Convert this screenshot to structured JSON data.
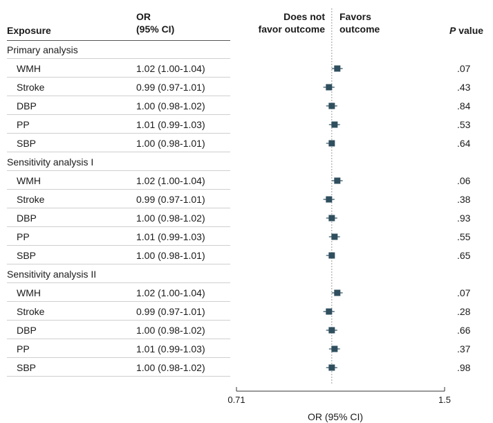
{
  "header": {
    "exposure": "Exposure",
    "or_line1": "OR",
    "or_line2": "(95% CI)",
    "left_line1": "Does not",
    "left_line2": "favor outcome",
    "right_line1": "Favors",
    "right_line2": "outcome",
    "p_italic": "P",
    "p_rest": " value"
  },
  "chart_data": {
    "type": "forest",
    "xlabel": "OR (95% CI)",
    "xscale": "log",
    "xlim": [
      0.71,
      1.5
    ],
    "xticks": [
      "0.71",
      "1.5"
    ],
    "reference_line": 1.0,
    "groups": [
      {
        "name": "Primary analysis",
        "rows": [
          {
            "label": "WMH",
            "or_text": "1.02 (1.00-1.04)",
            "or": 1.02,
            "lo": 1.0,
            "hi": 1.04,
            "p": ".07"
          },
          {
            "label": "Stroke",
            "or_text": "0.99 (0.97-1.01)",
            "or": 0.99,
            "lo": 0.97,
            "hi": 1.01,
            "p": ".43"
          },
          {
            "label": "DBP",
            "or_text": "1.00 (0.98-1.02)",
            "or": 1.0,
            "lo": 0.98,
            "hi": 1.02,
            "p": ".84"
          },
          {
            "label": "PP",
            "or_text": "1.01 (0.99-1.03)",
            "or": 1.01,
            "lo": 0.99,
            "hi": 1.03,
            "p": ".53"
          },
          {
            "label": "SBP",
            "or_text": "1.00 (0.98-1.01)",
            "or": 1.0,
            "lo": 0.98,
            "hi": 1.01,
            "p": ".64"
          }
        ]
      },
      {
        "name": "Sensitivity analysis I",
        "rows": [
          {
            "label": "WMH",
            "or_text": "1.02 (1.00-1.04)",
            "or": 1.02,
            "lo": 1.0,
            "hi": 1.04,
            "p": ".06"
          },
          {
            "label": "Stroke",
            "or_text": "0.99 (0.97-1.01)",
            "or": 0.99,
            "lo": 0.97,
            "hi": 1.01,
            "p": ".38"
          },
          {
            "label": "DBP",
            "or_text": "1.00 (0.98-1.02)",
            "or": 1.0,
            "lo": 0.98,
            "hi": 1.02,
            "p": ".93"
          },
          {
            "label": "PP",
            "or_text": "1.01 (0.99-1.03)",
            "or": 1.01,
            "lo": 0.99,
            "hi": 1.03,
            "p": ".55"
          },
          {
            "label": "SBP",
            "or_text": "1.00 (0.98-1.01)",
            "or": 1.0,
            "lo": 0.98,
            "hi": 1.01,
            "p": ".65"
          }
        ]
      },
      {
        "name": "Sensitivity analysis II",
        "rows": [
          {
            "label": "WMH",
            "or_text": "1.02 (1.00-1.04)",
            "or": 1.02,
            "lo": 1.0,
            "hi": 1.04,
            "p": ".07"
          },
          {
            "label": "Stroke",
            "or_text": "0.99 (0.97-1.01)",
            "or": 0.99,
            "lo": 0.97,
            "hi": 1.01,
            "p": ".28"
          },
          {
            "label": "DBP",
            "or_text": "1.00 (0.98-1.02)",
            "or": 1.0,
            "lo": 0.98,
            "hi": 1.02,
            "p": ".66"
          },
          {
            "label": "PP",
            "or_text": "1.01 (0.99-1.03)",
            "or": 1.01,
            "lo": 0.99,
            "hi": 1.03,
            "p": ".37"
          },
          {
            "label": "SBP",
            "or_text": "1.00 (0.98-1.02)",
            "or": 1.0,
            "lo": 0.98,
            "hi": 1.02,
            "p": ".98"
          }
        ]
      }
    ],
    "colors": {
      "marker": "#2f4f5f",
      "ci_line": "#2f4f5f",
      "reference_line": "#999999",
      "axis": "#333333"
    }
  }
}
